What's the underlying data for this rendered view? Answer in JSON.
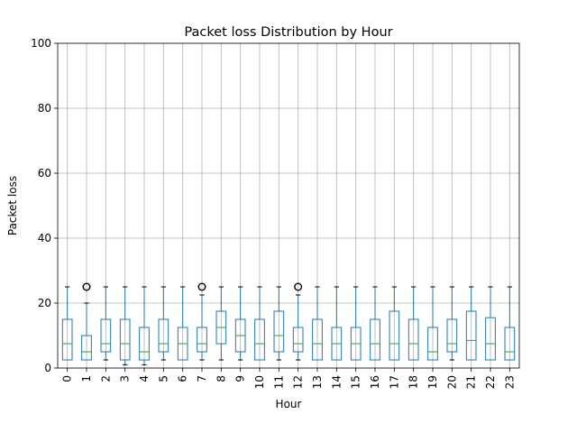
{
  "chart_data": {
    "type": "box",
    "title": "Packet loss Distribution by Hour",
    "xlabel": "Hour",
    "ylabel": "Packet loss",
    "ylim": [
      0,
      100
    ],
    "yticks": [
      0,
      20,
      40,
      60,
      80,
      100
    ],
    "grid": true,
    "categories": [
      "0",
      "1",
      "2",
      "3",
      "4",
      "5",
      "6",
      "7",
      "8",
      "9",
      "10",
      "11",
      "12",
      "13",
      "14",
      "15",
      "16",
      "17",
      "18",
      "19",
      "20",
      "21",
      "22",
      "23"
    ],
    "boxes": [
      {
        "whislo": 2.5,
        "q1": 2.5,
        "med": 7.5,
        "q3": 15,
        "whishi": 25,
        "fliers": []
      },
      {
        "whislo": 2.5,
        "q1": 2.5,
        "med": 5,
        "q3": 10,
        "whishi": 20,
        "fliers": [
          25
        ]
      },
      {
        "whislo": 2.5,
        "q1": 5,
        "med": 7.5,
        "q3": 15,
        "whishi": 25,
        "fliers": []
      },
      {
        "whislo": 1,
        "q1": 2.5,
        "med": 7.5,
        "q3": 15,
        "whishi": 25,
        "fliers": []
      },
      {
        "whislo": 1,
        "q1": 2.5,
        "med": 5,
        "q3": 12.5,
        "whishi": 25,
        "fliers": []
      },
      {
        "whislo": 2.5,
        "q1": 5,
        "med": 7.5,
        "q3": 15,
        "whishi": 25,
        "fliers": []
      },
      {
        "whislo": 2.5,
        "q1": 2.5,
        "med": 7.5,
        "q3": 12.5,
        "whishi": 25,
        "fliers": []
      },
      {
        "whislo": 2.5,
        "q1": 5,
        "med": 7.5,
        "q3": 12.5,
        "whishi": 22.5,
        "fliers": [
          25
        ]
      },
      {
        "whislo": 2.5,
        "q1": 7.5,
        "med": 12.5,
        "q3": 17.5,
        "whishi": 25,
        "fliers": []
      },
      {
        "whislo": 2.5,
        "q1": 5,
        "med": 10,
        "q3": 15,
        "whishi": 25,
        "fliers": []
      },
      {
        "whislo": 2.5,
        "q1": 2.5,
        "med": 7.5,
        "q3": 15,
        "whishi": 25,
        "fliers": []
      },
      {
        "whislo": 2.5,
        "q1": 5,
        "med": 10,
        "q3": 17.5,
        "whishi": 25,
        "fliers": []
      },
      {
        "whislo": 2.5,
        "q1": 5,
        "med": 7.5,
        "q3": 12.5,
        "whishi": 22.5,
        "fliers": [
          25
        ]
      },
      {
        "whislo": 2.5,
        "q1": 2.5,
        "med": 7.5,
        "q3": 15,
        "whishi": 25,
        "fliers": []
      },
      {
        "whislo": 2.5,
        "q1": 2.5,
        "med": 7.5,
        "q3": 12.5,
        "whishi": 25,
        "fliers": []
      },
      {
        "whislo": 2.5,
        "q1": 2.5,
        "med": 7.5,
        "q3": 12.5,
        "whishi": 25,
        "fliers": []
      },
      {
        "whislo": 2.5,
        "q1": 2.5,
        "med": 7.5,
        "q3": 15,
        "whishi": 25,
        "fliers": []
      },
      {
        "whislo": 2.5,
        "q1": 2.5,
        "med": 7.5,
        "q3": 17.5,
        "whishi": 25,
        "fliers": []
      },
      {
        "whislo": 2.5,
        "q1": 2.5,
        "med": 7.5,
        "q3": 15,
        "whishi": 25,
        "fliers": []
      },
      {
        "whislo": 2.5,
        "q1": 2.5,
        "med": 5,
        "q3": 12.5,
        "whishi": 25,
        "fliers": []
      },
      {
        "whislo": 2.5,
        "q1": 5,
        "med": 7.5,
        "q3": 15,
        "whishi": 25,
        "fliers": []
      },
      {
        "whislo": 2.5,
        "q1": 2.5,
        "med": 8.5,
        "q3": 17.5,
        "whishi": 25,
        "fliers": []
      },
      {
        "whislo": 2.5,
        "q1": 2.5,
        "med": 7.5,
        "q3": 15.5,
        "whishi": 25,
        "fliers": []
      },
      {
        "whislo": 2.5,
        "q1": 2.5,
        "med": 5,
        "q3": 12.5,
        "whishi": 25,
        "fliers": []
      }
    ],
    "colors": {
      "box": "#1f77b4",
      "median": "#2ca02c",
      "whisker": "#1f77b4",
      "cap": "#000000",
      "flier": "#000000",
      "grid": "#b0b0b0"
    }
  }
}
